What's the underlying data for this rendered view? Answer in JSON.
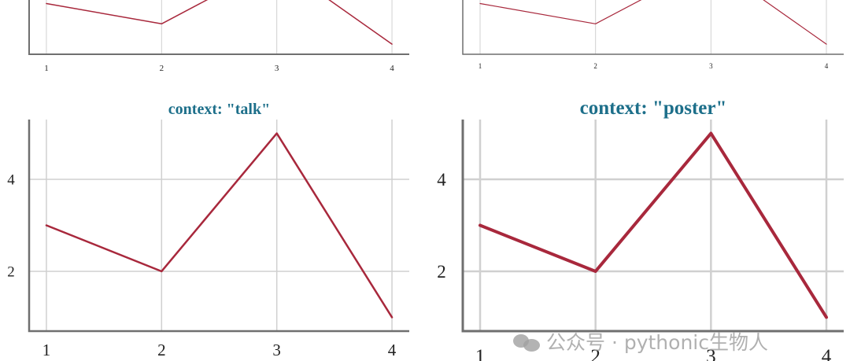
{
  "chart_data": [
    {
      "type": "line",
      "title": "",
      "x": [
        1,
        2,
        3,
        4
      ],
      "xticks": [
        "1",
        "2",
        "3",
        "4"
      ],
      "yticks": [],
      "series": [
        {
          "values": [
            3,
            2,
            5,
            1
          ]
        }
      ],
      "xlim": [
        0.85,
        4.15
      ],
      "ylim": [
        0.5,
        5.5
      ],
      "grid": true,
      "colors": {
        "line": "#a8283c"
      }
    },
    {
      "type": "line",
      "title": "",
      "x": [
        1,
        2,
        3,
        4
      ],
      "xticks": [
        "1",
        "2",
        "3",
        "4"
      ],
      "yticks": [],
      "series": [
        {
          "values": [
            3,
            2,
            5,
            1
          ]
        }
      ],
      "xlim": [
        0.85,
        4.15
      ],
      "ylim": [
        0.5,
        5.5
      ],
      "grid": true,
      "colors": {
        "line": "#a8283c"
      }
    },
    {
      "type": "line",
      "title": "context: \"talk\"",
      "x": [
        1,
        2,
        3,
        4
      ],
      "xticks": [
        "1",
        "2",
        "3",
        "4"
      ],
      "yticks": [
        "2",
        "4"
      ],
      "series": [
        {
          "values": [
            3,
            2,
            5,
            1
          ]
        }
      ],
      "xlim": [
        0.85,
        4.15
      ],
      "ylim": [
        0.7,
        5.3
      ],
      "grid": true,
      "colors": {
        "line": "#a8283c"
      }
    },
    {
      "type": "line",
      "title": "context: \"poster\"",
      "x": [
        1,
        2,
        3,
        4
      ],
      "xticks": [
        "1",
        "2",
        "3",
        "4"
      ],
      "yticks": [
        "2",
        "4"
      ],
      "series": [
        {
          "values": [
            3,
            2,
            5,
            1
          ]
        }
      ],
      "xlim": [
        0.85,
        4.15
      ],
      "ylim": [
        0.7,
        5.3
      ],
      "grid": true,
      "colors": {
        "line": "#a8283c"
      }
    }
  ],
  "watermark": {
    "text": "公众号 · pythonic生物人"
  }
}
